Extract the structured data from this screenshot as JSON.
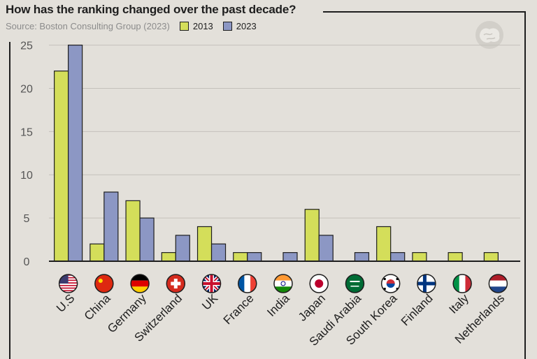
{
  "header": {
    "title": "How has the ranking changed over the past decade?",
    "source": "Source: Boston Consulting Group (2023)"
  },
  "logo": {
    "icon": "brain-logo-icon"
  },
  "colors": {
    "series_2013": "#d4de5a",
    "series_2023": "#8c97c4",
    "axis": "#1e1e1e",
    "grid": "#c4c1bb",
    "background": "#e3e0da"
  },
  "chart_data": {
    "type": "bar",
    "title": "How has the ranking changed over the past decade?",
    "subtitle": "Source: Boston Consulting Group (2023)",
    "categories": [
      "U.S",
      "China",
      "Germany",
      "Switzerland",
      "UK",
      "France",
      "India",
      "Japan",
      "Saudi Arabia",
      "South Korea",
      "Finland",
      "Italy",
      "Netherlands"
    ],
    "flags": [
      "us-flag-icon",
      "china-flag-icon",
      "germany-flag-icon",
      "switzerland-flag-icon",
      "uk-flag-icon",
      "france-flag-icon",
      "india-flag-icon",
      "japan-flag-icon",
      "saudi-arabia-flag-icon",
      "south-korea-flag-icon",
      "finland-flag-icon",
      "italy-flag-icon",
      "netherlands-flag-icon"
    ],
    "series": [
      {
        "name": "2013",
        "values": [
          22,
          2,
          7,
          1,
          4,
          1,
          0,
          6,
          0,
          4,
          1,
          1,
          1
        ]
      },
      {
        "name": "2023",
        "values": [
          25,
          8,
          5,
          3,
          2,
          1,
          1,
          3,
          1,
          1,
          0,
          0,
          0
        ]
      }
    ],
    "yticks": [
      0,
      5,
      10,
      15,
      20,
      25
    ],
    "ylim": [
      0,
      26.5
    ],
    "xlabel": "",
    "ylabel": "",
    "grid": true,
    "legend": "top-left, next to source"
  }
}
